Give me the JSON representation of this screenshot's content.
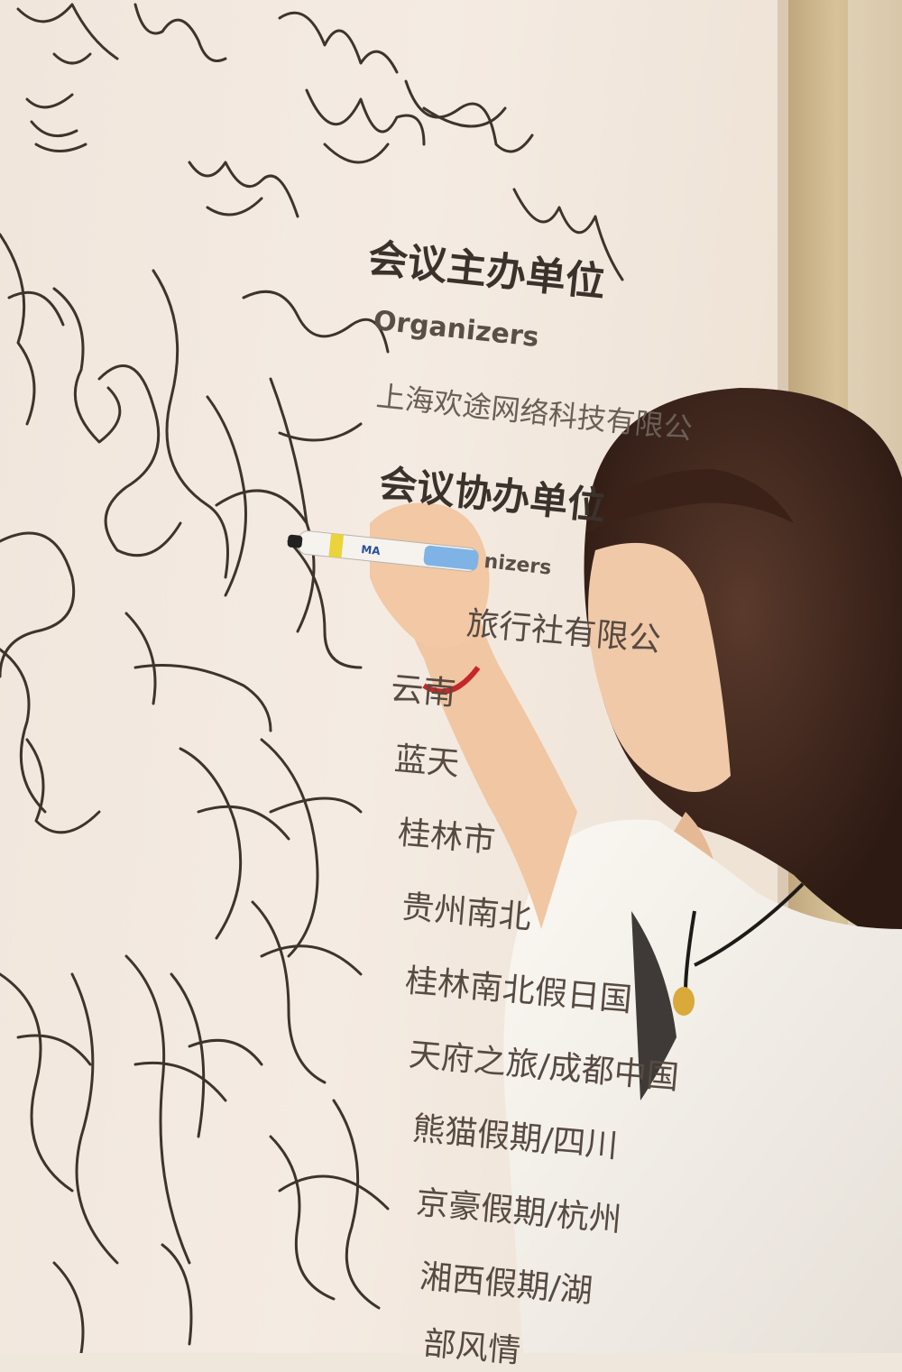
{
  "board": {
    "organizer_heading": "会议主办单位",
    "organizer_sub": "Organizers",
    "organizer_name": "上海欢途网络科技有限公",
    "co_heading": "会议协办单位",
    "co_sub": "nizers",
    "co_list": [
      "旅行社有限公",
      "云南",
      "蓝天",
      "桂林市",
      "贵州南北",
      "桂林南北假日国",
      "天府之旅/成都中国",
      "熊猫假期/四川",
      "京豪假期/杭州",
      "湘西假期/湖",
      "部风情"
    ]
  },
  "photo": {
    "subject": "woman with dark bob haircut writing signature on wall",
    "pen_label": "MA"
  }
}
